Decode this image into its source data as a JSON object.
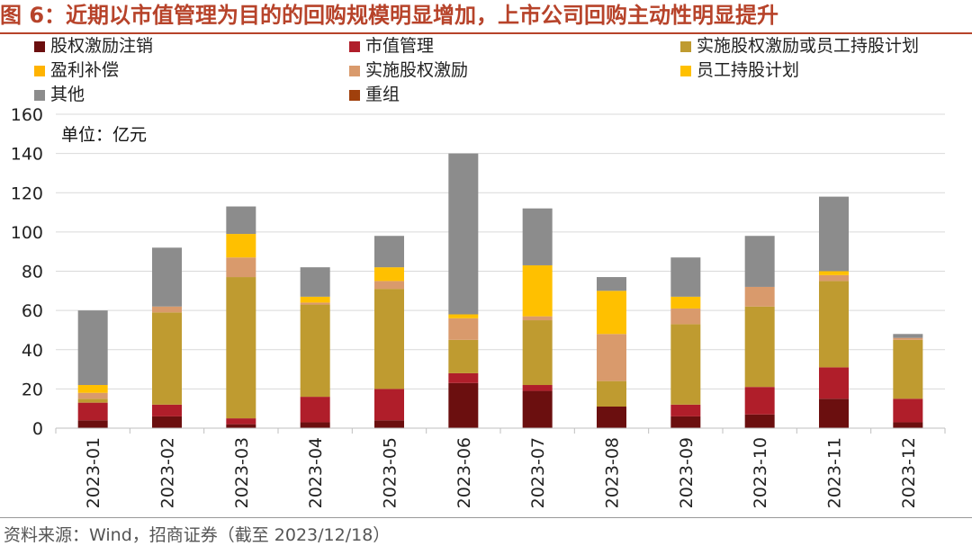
{
  "title": "图 6：近期以市值管理为目的的回购规模明显增加，上市公司回购主动性明显提升",
  "source": "资料来源：Wind，招商证券（截至 2023/12/18）",
  "chart_data": {
    "type": "bar",
    "stacked": true,
    "unit_label": "单位：亿元",
    "ylim": [
      0,
      160
    ],
    "yticks": [
      0,
      20,
      40,
      60,
      80,
      100,
      120,
      140,
      160
    ],
    "grid": true,
    "legend_position": "top",
    "categories": [
      "2023-01",
      "2023-02",
      "2023-03",
      "2023-04",
      "2023-05",
      "2023-06",
      "2023-07",
      "2023-08",
      "2023-09",
      "2023-10",
      "2023-11",
      "2023-12"
    ],
    "series": [
      {
        "name": "股权激励注销",
        "color": "#6b0f0f",
        "values": [
          4,
          6,
          2,
          3,
          4,
          23,
          19,
          11,
          6,
          7,
          15,
          3
        ]
      },
      {
        "name": "重组",
        "color": "#a0400c",
        "values": [
          0,
          0,
          0,
          0,
          0,
          0,
          0,
          0,
          0,
          0,
          0,
          0
        ]
      },
      {
        "name": "市值管理",
        "color": "#b01e2a",
        "values": [
          9,
          6,
          3,
          13,
          16,
          5,
          3,
          0,
          6,
          14,
          16,
          12
        ]
      },
      {
        "name": "实施股权激励或员工持股计划",
        "color": "#bf9b30",
        "values": [
          2,
          47,
          72,
          47,
          51,
          17,
          33,
          13,
          41,
          41,
          44,
          30
        ]
      },
      {
        "name": "实施股权激励",
        "color": "#d99a6c",
        "values": [
          3,
          3,
          10,
          1,
          4,
          11,
          2,
          24,
          8,
          10,
          3,
          1
        ]
      },
      {
        "name": "员工持股计划",
        "color": "#ffc000",
        "values": [
          4,
          0,
          12,
          3,
          7,
          2,
          26,
          22,
          6,
          0,
          2,
          0
        ]
      },
      {
        "name": "盈利补偿",
        "color": "#ffb300",
        "values": [
          0,
          0,
          0,
          0,
          0,
          0,
          0,
          0,
          0,
          0,
          0,
          0
        ]
      },
      {
        "name": "其他",
        "color": "#8c8c8c",
        "values": [
          38,
          30,
          14,
          15,
          16,
          82,
          29,
          7,
          20,
          26,
          38,
          2
        ]
      }
    ],
    "legend_order": [
      "股权激励注销",
      "市值管理",
      "实施股权激励或员工持股计划",
      "盈利补偿",
      "实施股权激励",
      "员工持股计划",
      "其他",
      "重组"
    ]
  }
}
